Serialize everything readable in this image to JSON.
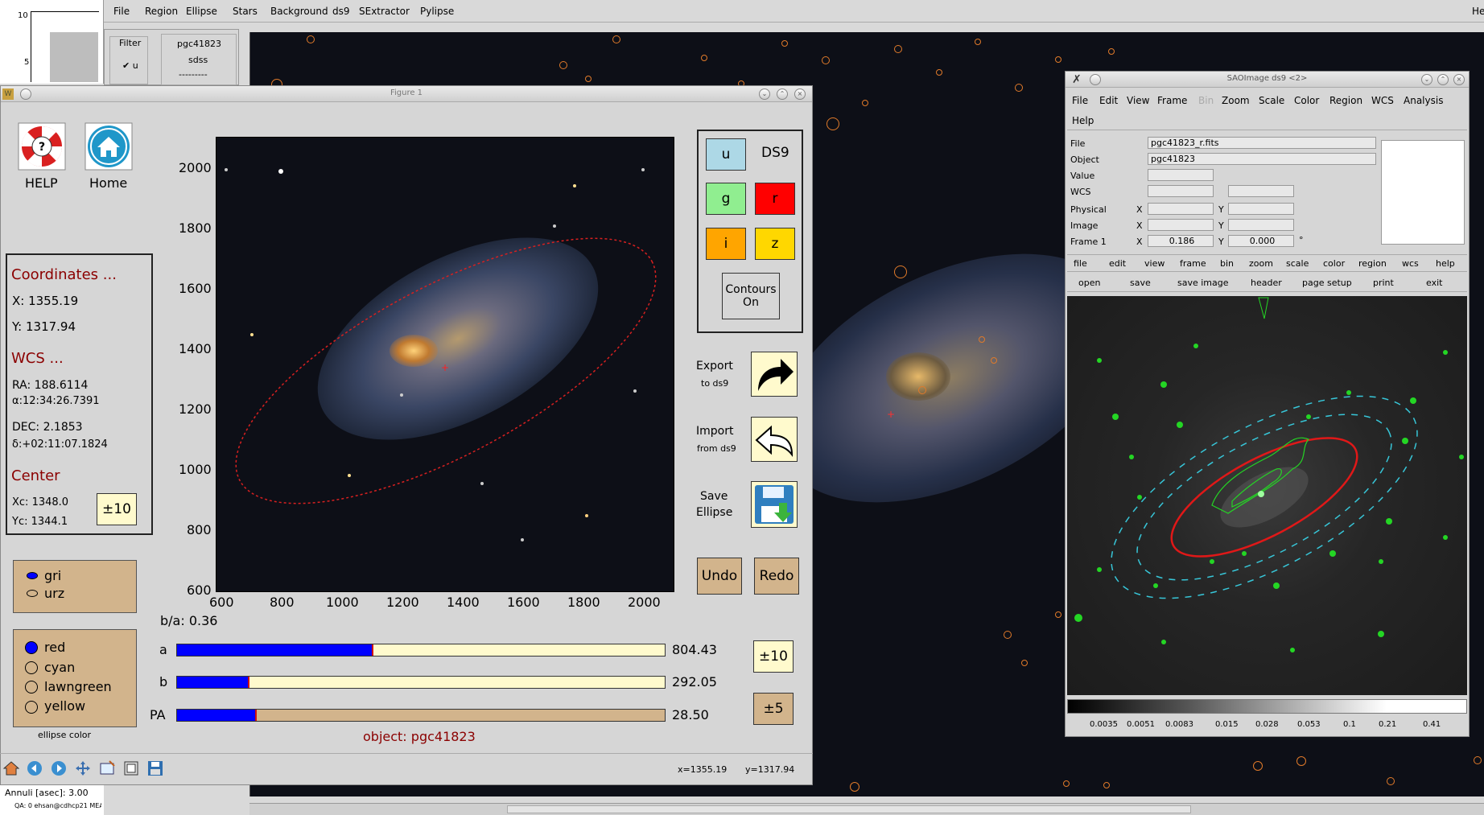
{
  "app_menu": [
    "File",
    "Region",
    "Ellipse",
    "Stars",
    "Background",
    "ds9",
    "SExtractor",
    "Pylipse"
  ],
  "app_menu_right": "He",
  "filter_panel": {
    "label": "Filter",
    "filter_value": "u",
    "object": "pgc41823",
    "survey": "sdss",
    "dashes": "---------"
  },
  "mini_plot": {
    "ticks": [
      "10",
      "5"
    ]
  },
  "bottom_left": {
    "annuli": "Annuli [asec]:  3.00",
    "qa": "QA: 0 ehsan@cdhcp21 MEA"
  },
  "figure1": {
    "title": "Figure 1",
    "help_label": "HELP",
    "home_label": "Home",
    "coords": {
      "heading": "Coordinates ...",
      "x": "X: 1355.19",
      "y": "Y: 1317.94"
    },
    "wcs": {
      "heading": "WCS ...",
      "ra": "RA: 188.6114",
      "alpha": "α:12:34:26.7391",
      "dec": "DEC: 2.1853",
      "delta": "δ:+02:11:07.1824"
    },
    "center": {
      "heading": "Center",
      "xc": "Xc: 1348.0",
      "yc": "Yc: 1344.1",
      "step": "±10"
    },
    "color_scheme": {
      "options": [
        "gri",
        "urz"
      ],
      "selected": "gri"
    },
    "ellipse_color": {
      "options": [
        "red",
        "cyan",
        "lawngreen",
        "yellow"
      ],
      "selected": "red",
      "caption": "ellipse color"
    },
    "plot": {
      "y_ticks": [
        "2000",
        "1800",
        "1600",
        "1400",
        "1200",
        "1000",
        "800",
        "600"
      ],
      "x_ticks": [
        "600",
        "800",
        "1000",
        "1200",
        "1400",
        "1600",
        "1800",
        "2000"
      ],
      "ba_label": "b/a: 0.36"
    },
    "bands": {
      "u": "u",
      "ds9": "DS9",
      "g": "g",
      "r": "r",
      "i": "i",
      "z": "z",
      "contours": "Contours On"
    },
    "export": {
      "line1": "Export",
      "line2": "to ds9"
    },
    "import": {
      "line1": "Import",
      "line2": "from ds9"
    },
    "save": {
      "line1": "Save",
      "line2": "Ellipse"
    },
    "undo": "Undo",
    "redo": "Redo",
    "sliders": [
      {
        "label": "a",
        "value": "804.43",
        "fraction": 0.4
      },
      {
        "label": "b",
        "value": "292.05",
        "fraction": 0.145
      },
      {
        "label": "PA",
        "value": "28.50",
        "fraction": 0.16
      }
    ],
    "step_ab": "±10",
    "step_pa": "±5",
    "object_label": "object: pgc41823",
    "status_x": "x=1355.19",
    "status_y": "y=1317.94",
    "colors": {
      "u": "#add8e6",
      "g": "#90ee90",
      "r": "#ff0000",
      "i": "#ffa500",
      "z": "#ffd700",
      "tan": "#d2b48c"
    }
  },
  "ds9": {
    "title": "SAOImage ds9 <2>",
    "menu": [
      "File",
      "Edit",
      "View",
      "Frame",
      "Bin",
      "Zoom",
      "Scale",
      "Color",
      "Region",
      "WCS",
      "Analysis"
    ],
    "menu2": "Help",
    "info": {
      "file_label": "File",
      "file_value": "pgc41823_r.fits",
      "object_label": "Object",
      "object_value": "pgc41823",
      "value_label": "Value",
      "wcs_label": "WCS",
      "physical_label": "Physical",
      "image_label": "Image",
      "frame_label": "Frame 1",
      "x": "X",
      "y": "Y",
      "frame_x": "0.186",
      "frame_y": "0.000",
      "deg": "°"
    },
    "buttons1": [
      "file",
      "edit",
      "view",
      "frame",
      "bin",
      "zoom",
      "scale",
      "color",
      "region",
      "wcs",
      "help"
    ],
    "buttons2": [
      "open",
      "save",
      "save image",
      "header",
      "page setup",
      "print",
      "exit"
    ],
    "colorbar_ticks": [
      "0.0035",
      "0.0051",
      "0.0083",
      "0.015",
      "0.028",
      "0.053",
      "0.1",
      "0.21",
      "0.41"
    ]
  }
}
